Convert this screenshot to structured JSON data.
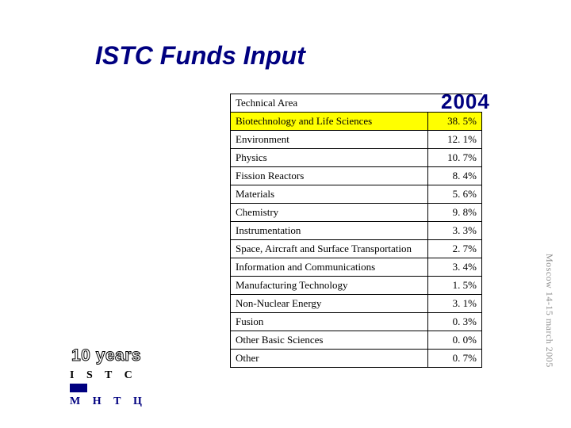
{
  "title": "ISTC Funds Input",
  "year": "2004",
  "tenYears": "10 years",
  "istc": "I S T C",
  "mntc": "М Н Т Ц",
  "sideNote": "Moscow 14-15 march 2005",
  "table": {
    "headerArea": "Technical Area",
    "rows": [
      {
        "area": "Biotechnology and Life Sciences",
        "value": "38. 5%",
        "highlight": true
      },
      {
        "area": "Environment",
        "value": "12. 1%",
        "highlight": false
      },
      {
        "area": "Physics",
        "value": "10. 7%",
        "highlight": false
      },
      {
        "area": "Fission Reactors",
        "value": "8. 4%",
        "highlight": false
      },
      {
        "area": "Materials",
        "value": "5. 6%",
        "highlight": false
      },
      {
        "area": "Chemistry",
        "value": "9. 8%",
        "highlight": false
      },
      {
        "area": "Instrumentation",
        "value": "3. 3%",
        "highlight": false
      },
      {
        "area": "Space, Aircraft and Surface Transportation",
        "value": "2. 7%",
        "highlight": false
      },
      {
        "area": "Information and Communications",
        "value": "3. 4%",
        "highlight": false
      },
      {
        "area": "Manufacturing Technology",
        "value": "1. 5%",
        "highlight": false
      },
      {
        "area": "Non-Nuclear Energy",
        "value": "3. 1%",
        "highlight": false
      },
      {
        "area": "Fusion",
        "value": "0. 3%",
        "highlight": false
      },
      {
        "area": "Other Basic Sciences",
        "value": "0. 0%",
        "highlight": false
      },
      {
        "area": "Other",
        "value": "0. 7%",
        "highlight": false
      }
    ]
  },
  "colors": {
    "titleColor": "#000080",
    "highlight": "#ffff00"
  }
}
